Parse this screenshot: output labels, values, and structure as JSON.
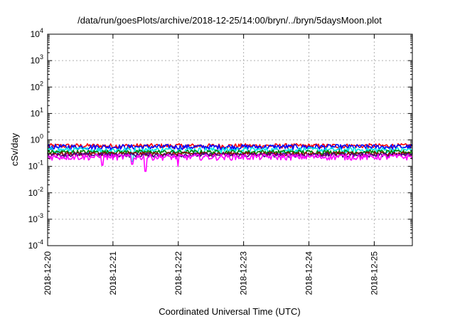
{
  "chart_data": {
    "type": "line",
    "title": "/data/run/goesPlots/archive/2018-12-25/14:00/bryn/../bryn/5daysMoon.plot",
    "xlabel": "Coordinated Universal Time (UTC)",
    "ylabel": "cSv/day",
    "yscale": "log",
    "ylim": [
      0.0001,
      10000
    ],
    "xlim": [
      "2018-12-20",
      "2018-12-25 14:00"
    ],
    "grid": true,
    "legend": "none",
    "x_ticks": [
      "2018-12-20",
      "2018-12-21",
      "2018-12-22",
      "2018-12-23",
      "2018-12-24",
      "2018-12-25"
    ],
    "y_ticks": [
      {
        "base": "10",
        "exp": "-4"
      },
      {
        "base": "10",
        "exp": "-3"
      },
      {
        "base": "10",
        "exp": "-2"
      },
      {
        "base": "10",
        "exp": "-1"
      },
      {
        "base": "10",
        "exp": "0"
      },
      {
        "base": "10",
        "exp": "1"
      },
      {
        "base": "10",
        "exp": "2"
      },
      {
        "base": "10",
        "exp": "3"
      },
      {
        "base": "10",
        "exp": "4"
      }
    ],
    "series": [
      {
        "color": "#ff0000",
        "base": 0.6,
        "noise": 0.12,
        "dips": []
      },
      {
        "color": "#0000ff",
        "base": 0.55,
        "noise": 0.12,
        "dips": []
      },
      {
        "color": "#00e5e5",
        "base": 0.42,
        "noise": 0.1,
        "dips": [
          {
            "x": "2018-12-21 07:00",
            "y": 0.15
          }
        ]
      },
      {
        "color": "#008000",
        "base": 0.35,
        "noise": 0.06,
        "dips": []
      },
      {
        "color": "#8b0000",
        "base": 0.3,
        "noise": 0.05,
        "dips": []
      },
      {
        "color": "#4b0082",
        "base": 0.27,
        "noise": 0.05,
        "dips": []
      },
      {
        "color": "#ff00ff",
        "base": 0.23,
        "noise": 0.06,
        "dips": [
          {
            "x": "2018-12-20 20:00",
            "y": 0.11
          },
          {
            "x": "2018-12-21 07:00",
            "y": 0.12
          },
          {
            "x": "2018-12-21 12:00",
            "y": 0.065
          },
          {
            "x": "2018-12-22 00:00",
            "y": 0.1
          }
        ]
      }
    ]
  }
}
